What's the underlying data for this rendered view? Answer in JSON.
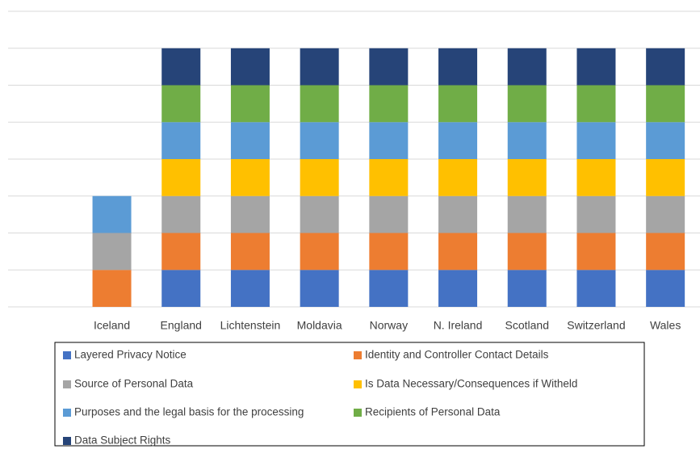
{
  "chart_data": {
    "type": "bar",
    "stacked": true,
    "categories": [
      null,
      "Iceland",
      "England",
      "Lichtenstein",
      "Moldavia",
      "Norway",
      "N. Ireland",
      "Scotland",
      "Switzerland",
      "Wales"
    ],
    "series": [
      {
        "name": "Layered Privacy Notice",
        "color": "#4472c4",
        "values": [
          null,
          0,
          1,
          1,
          1,
          1,
          1,
          1,
          1,
          1
        ]
      },
      {
        "name": "Identity and Controller Contact Details",
        "color": "#ed7d31",
        "values": [
          null,
          1,
          1,
          1,
          1,
          1,
          1,
          1,
          1,
          1
        ]
      },
      {
        "name": "Source of Personal Data",
        "color": "#a5a5a5",
        "values": [
          null,
          1,
          1,
          1,
          1,
          1,
          1,
          1,
          1,
          1
        ]
      },
      {
        "name": "Is Data Necessary/Consequences if Witheld",
        "color": "#ffc000",
        "values": [
          null,
          0,
          1,
          1,
          1,
          1,
          1,
          1,
          1,
          1
        ]
      },
      {
        "name": "Purposes and the legal basis for the processing",
        "color": "#5b9bd5",
        "values": [
          null,
          1,
          1,
          1,
          1,
          1,
          1,
          1,
          1,
          1
        ]
      },
      {
        "name": "Recipients of Personal Data",
        "color": "#70ad47",
        "values": [
          null,
          0,
          1,
          1,
          1,
          1,
          1,
          1,
          1,
          1
        ]
      },
      {
        "name": "Data Subject Rights",
        "color": "#264478",
        "values": [
          null,
          0,
          1,
          1,
          1,
          1,
          1,
          1,
          1,
          1
        ]
      }
    ],
    "ylim": [
      0,
      8
    ],
    "yticks": [
      0,
      1,
      2,
      3,
      4,
      5,
      6,
      7,
      8
    ],
    "grid": true,
    "legend": "bottom"
  }
}
